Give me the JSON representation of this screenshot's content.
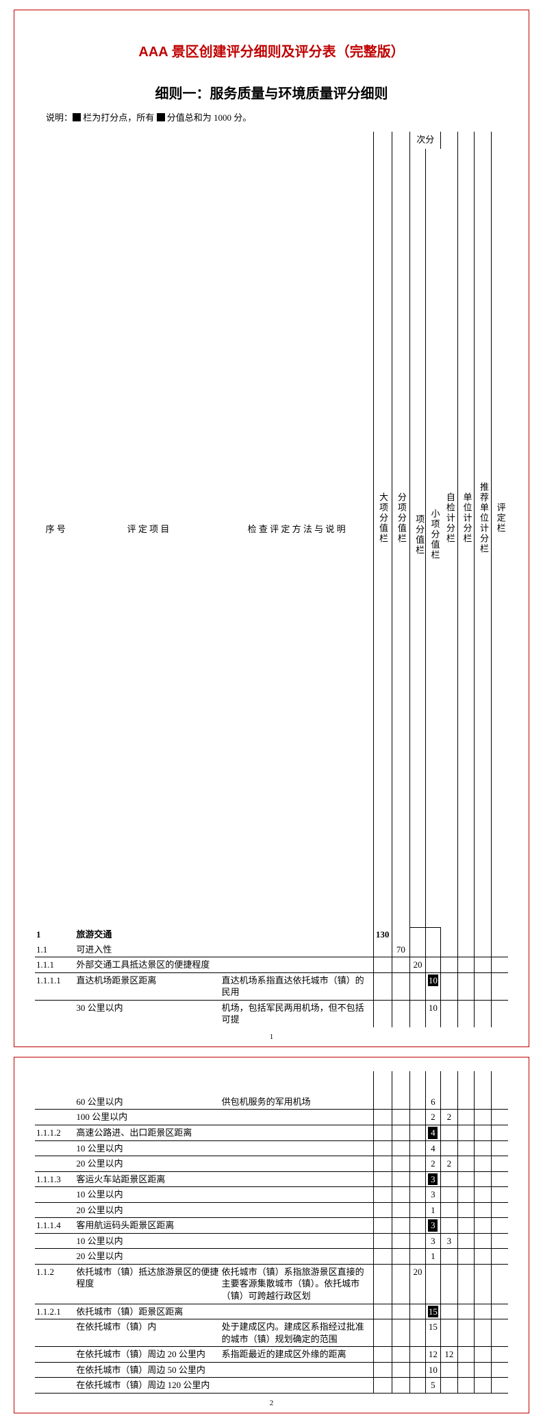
{
  "colors": {
    "accent": "#c00000",
    "text": "#000000",
    "bg": "#ffffff"
  },
  "title_main": "AAA 景区创建评分细则及评分表（完整版）",
  "title_sub": "细则一：服务质量与环境质量评分细则",
  "note_prefix": "说明：",
  "note_mid1": " 栏为打分点，所有 ",
  "note_mid2": " 分值总和为 1000 分。",
  "headers": {
    "seq": "序 号",
    "item": "评  定  项  目",
    "desc": "检 查  评 定 方 法 与 说 明",
    "big": "大项分值栏",
    "sub": "分项分值栏",
    "ci_group": "次分",
    "ci": "项分值栏",
    "sm": "小项分值栏",
    "self": "自检计分栏",
    "unit": "单位计分栏",
    "rec": "推荐单位计分栏",
    "eval": "评定栏"
  },
  "page1_rows": [
    {
      "seq": "1",
      "item": "旅游交通",
      "big": "130",
      "bold": true
    },
    {
      "seq": "1.1",
      "item": "可进入性",
      "sub": "70",
      "line": true
    },
    {
      "seq": "1.1.1",
      "item": "外部交通工具抵达景区的便捷程度",
      "ci": "20",
      "line": true
    },
    {
      "seq": "1.1.1.1",
      "item": "直达机场距景区距离",
      "desc": "直达机场系指直达依托城市（镇）的民用",
      "sm_hl": "10",
      "line": true
    },
    {
      "seq": "",
      "item": "30 公里以内",
      "desc": "机场，包括军民两用机场，但不包括可提",
      "sm": "10"
    }
  ],
  "page2_rows": [
    {
      "item": "60 公里以内",
      "desc": "供包机服务的军用机场",
      "sm": "6",
      "line": true
    },
    {
      "item": "100 公里以内",
      "sm": "2",
      "self": "2",
      "line": true
    },
    {
      "seq": "1.1.1.2",
      "item": "高速公路进、出口距景区距离",
      "sm_hl": "4",
      "line": true
    },
    {
      "item": "10 公里以内",
      "sm": "4",
      "line": true
    },
    {
      "item": "20 公里以内",
      "sm": "2",
      "self": "2",
      "line": true
    },
    {
      "seq": "1.1.1.3",
      "item": "客运火车站距景区距离",
      "sm_hl": "3",
      "line": true
    },
    {
      "item": "10 公里以内",
      "sm": "3",
      "line": true
    },
    {
      "item": "20 公里以内",
      "sm": "1",
      "line": true
    },
    {
      "seq": "1.1.1.4",
      "item": "客用航运码头距景区距离",
      "sm_hl": "3",
      "line": true
    },
    {
      "item": "10 公里以内",
      "sm": "3",
      "self": "3",
      "line": true
    },
    {
      "item": "20 公里以内",
      "sm": "1",
      "line": true
    },
    {
      "seq": "1.1.2",
      "item": "依托城市（镇）抵达旅游景区的便捷程度",
      "desc": "依托城市（镇）系指旅游景区直接的主要客源集散城市（镇）。依托城市（镇）可跨越行政区划",
      "ci": "20",
      "line": true
    },
    {
      "seq": "1.1.2.1",
      "item": "依托城市（镇）距景区距离",
      "sm_hl": "15",
      "line": true
    },
    {
      "item": "在依托城市（镇）内",
      "desc": "处于建成区内。建成区系指经过批准的城市（镇）规划确定的范围",
      "sm": "15",
      "line": true
    },
    {
      "item": "在依托城市（镇）周边 20 公里内",
      "desc": "系指距最近的建成区外缘的距离",
      "sm": "12",
      "self": "12",
      "line": true
    },
    {
      "item": "在依托城市（镇）周边 50 公里内",
      "sm": "10",
      "line": true
    },
    {
      "item": "在依托城市（镇）周边 120 公里内",
      "sm": "5",
      "line": true
    }
  ],
  "pageno1": "1",
  "pageno2": "2"
}
